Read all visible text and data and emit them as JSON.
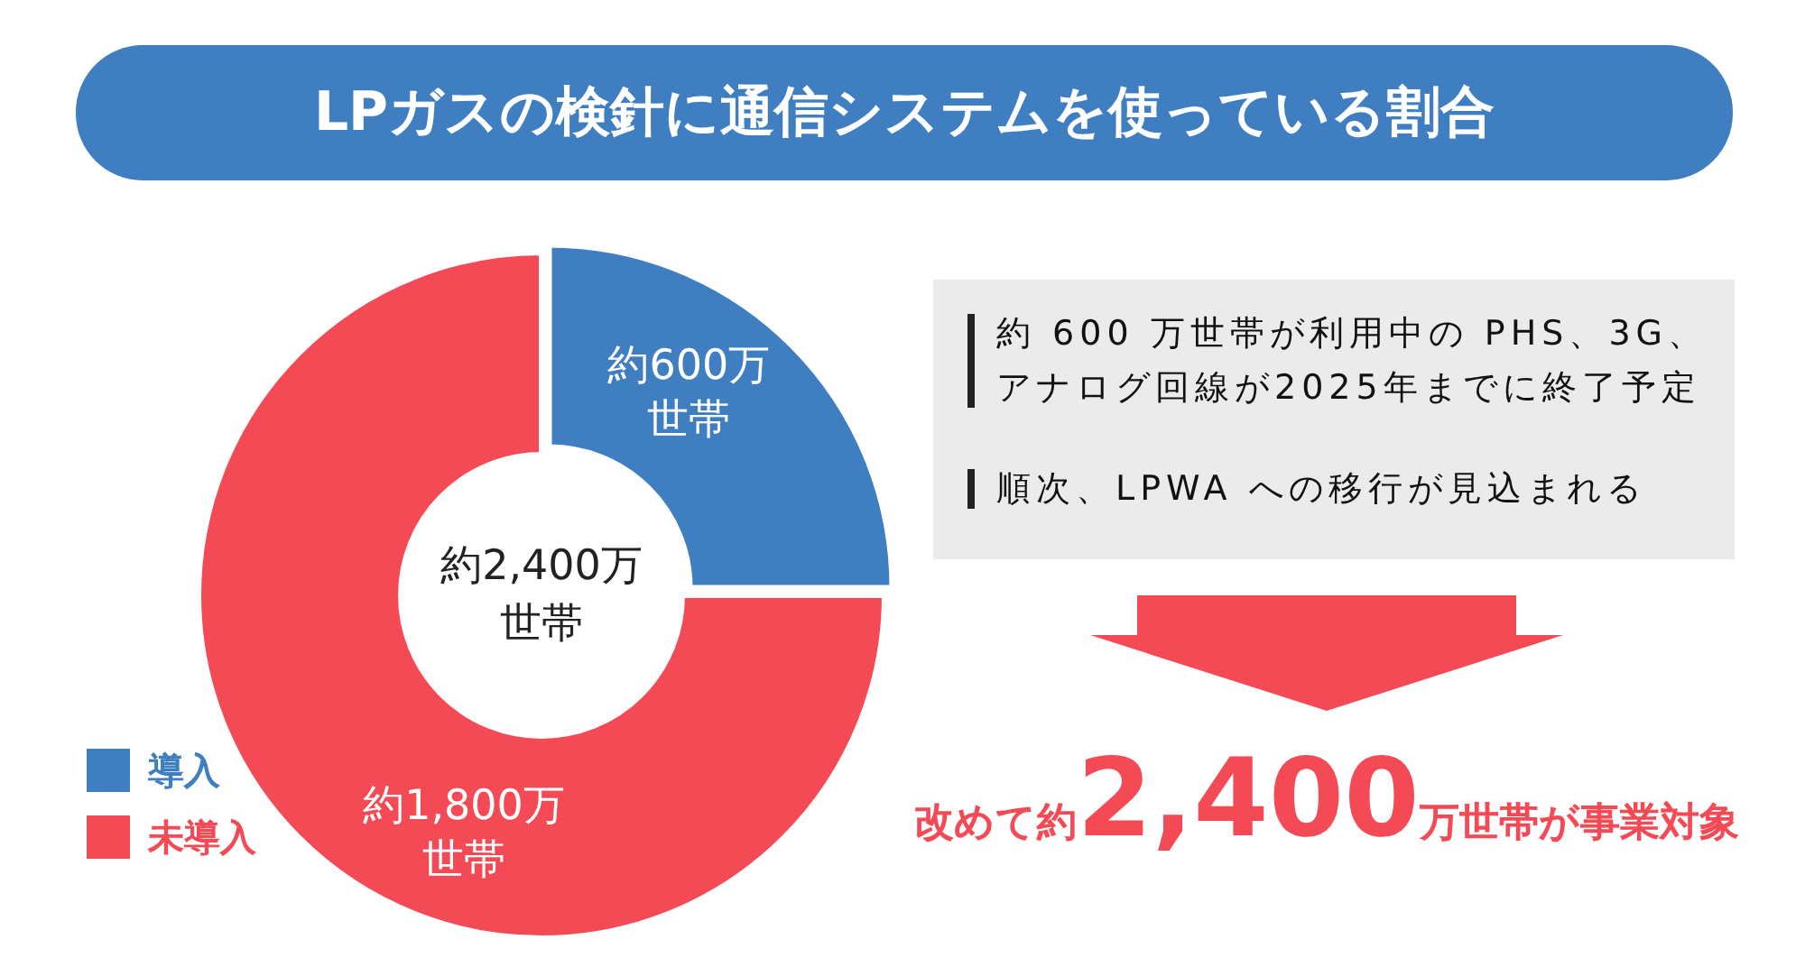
{
  "chart_data": {
    "type": "donut",
    "title": "LPガスの検針に通信システムを使っている割合",
    "categories": [
      "導入",
      "未導入"
    ],
    "values": [
      600,
      1800
    ],
    "colors": [
      "#3f7fc1",
      "#f44a56"
    ],
    "value_labels": [
      "約600万世帯",
      "約1,800万世帯"
    ],
    "legend": "bottom left",
    "annotations": [
      "約2,400万世帯",
      "約 600 万世帯が利用中の PHS、3G、アナログ回線が2025年までに終了予定",
      "順次、LPWA への移行が見込まれる",
      "改めて約",
      "2,400",
      "万世帯が事業対象"
    ]
  }
}
